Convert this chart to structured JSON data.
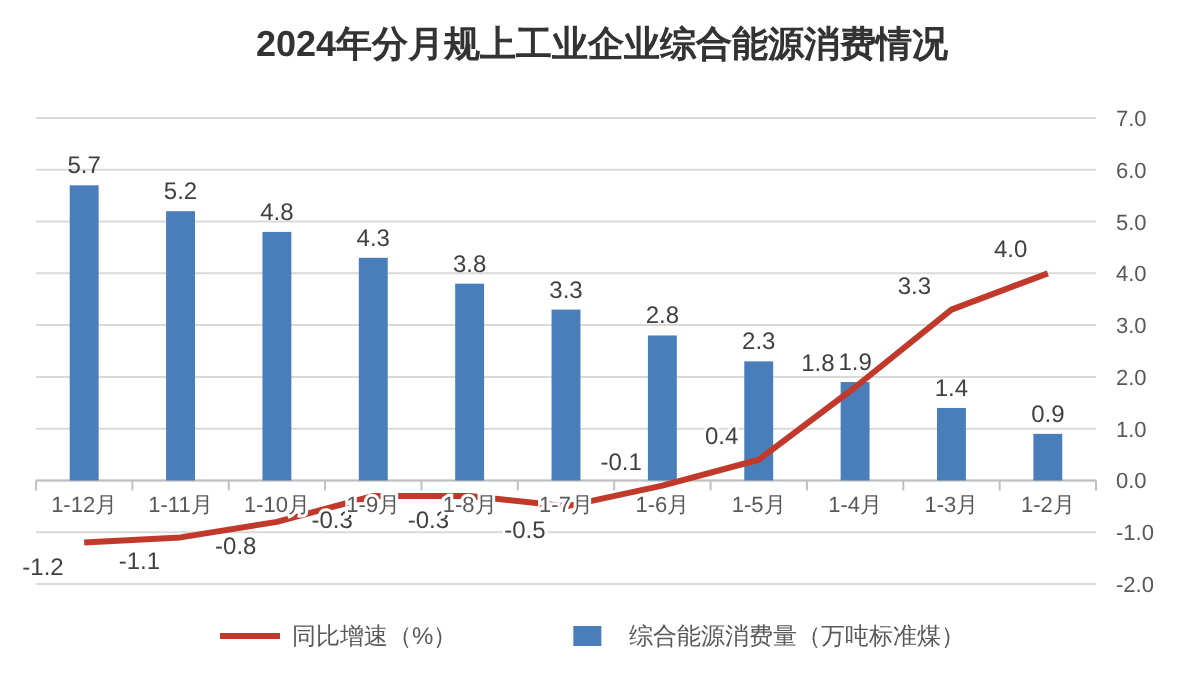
{
  "chart_data": {
    "type": "bar",
    "title": "2024年分月规上工业企业综合能源消费情况",
    "categories": [
      "1-12月",
      "1-11月",
      "1-10月",
      "1-9月",
      "1-8月",
      "1-7月",
      "1-6月",
      "1-5月",
      "1-4月",
      "1-3月",
      "1-2月"
    ],
    "series": [
      {
        "name": "综合能源消费量（万吨标准煤）",
        "color": "#4a7ebb",
        "values": [
          5.7,
          5.2,
          4.8,
          4.3,
          3.8,
          3.3,
          2.8,
          2.3,
          1.9,
          1.4,
          0.9
        ]
      },
      {
        "name": "同比增速（%）",
        "type": "line",
        "color": "#c0392b",
        "values": [
          -1.2,
          -1.1,
          -0.8,
          -0.3,
          -0.3,
          -0.5,
          -0.1,
          0.4,
          1.8,
          3.3,
          4.0
        ],
        "value_labels": [
          "-1.2",
          "-1.1",
          "-0.8",
          "-0.3",
          "-0.3",
          "-0.5",
          "-0.1",
          "0.4",
          "1.8",
          "3.3",
          "4.0"
        ]
      }
    ],
    "ylim": [
      -2,
      7
    ],
    "yticks": [
      {
        "value": -2,
        "label": "-2.0"
      },
      {
        "value": -1,
        "label": "-1.0"
      },
      {
        "value": 0,
        "label": "0.0"
      },
      {
        "value": 1,
        "label": "1.0"
      },
      {
        "value": 2,
        "label": "2.0"
      },
      {
        "value": 3,
        "label": "3.0"
      },
      {
        "value": 4,
        "label": "4.0"
      },
      {
        "value": 5,
        "label": "5.0"
      },
      {
        "value": 6,
        "label": "6.0"
      },
      {
        "value": 7,
        "label": "7.0"
      }
    ],
    "grid": "y",
    "legend": "bottom",
    "data_labels": true
  }
}
